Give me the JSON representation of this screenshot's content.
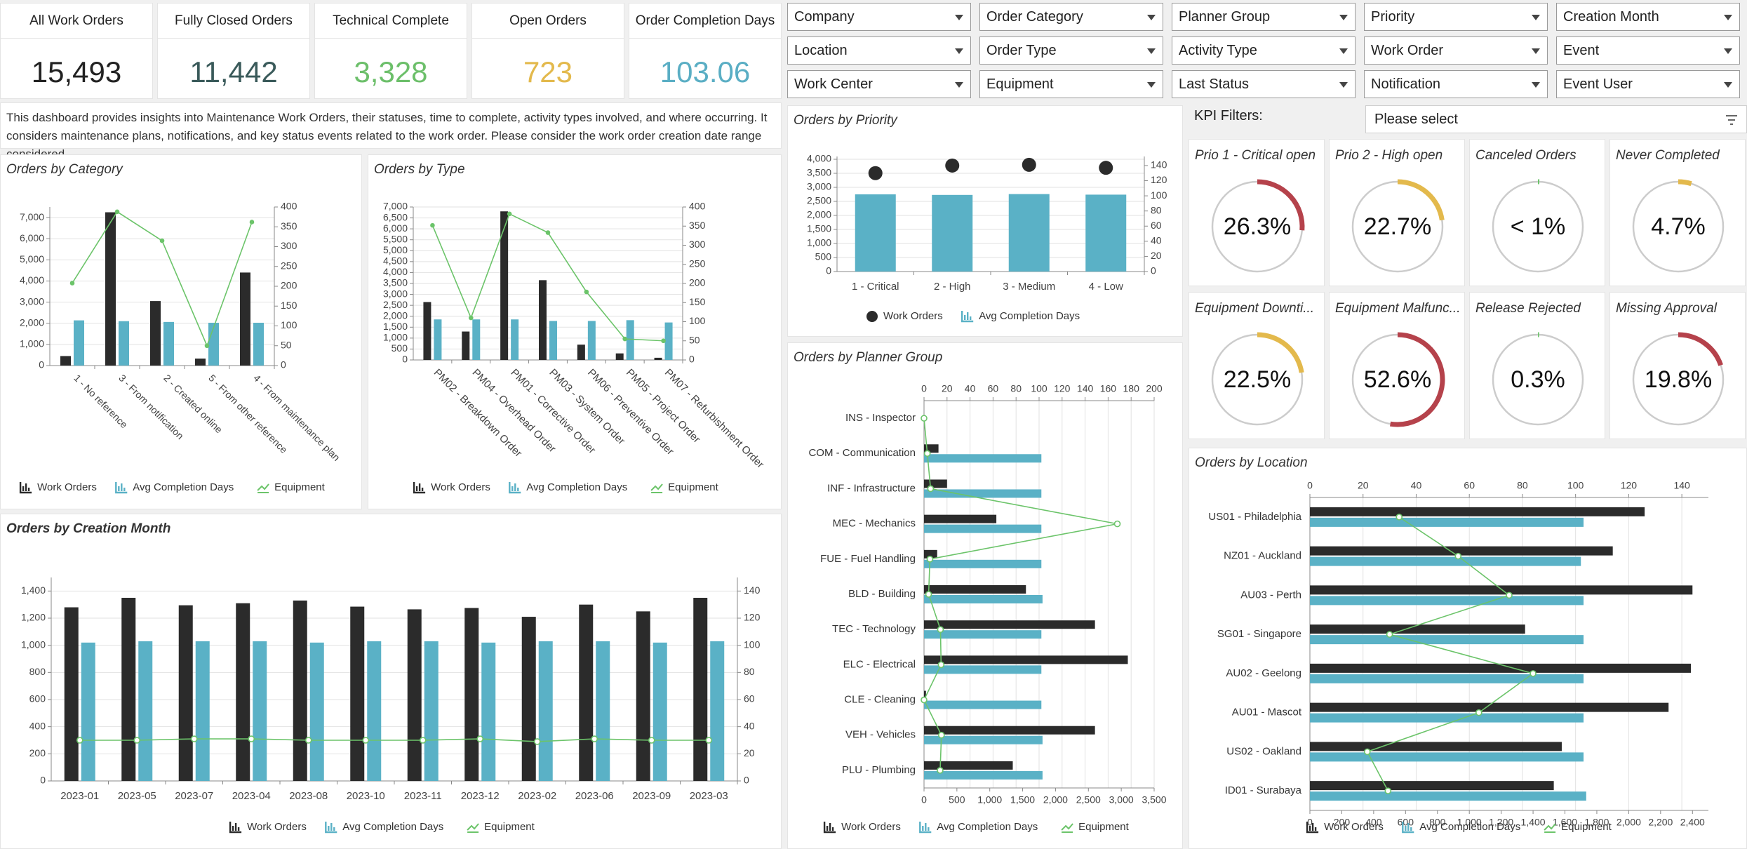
{
  "kpis": [
    {
      "title": "All Work Orders",
      "value": "15,493",
      "color": "#222222"
    },
    {
      "title": "Fully Closed Orders",
      "value": "11,442",
      "color": "#3a5a5a"
    },
    {
      "title": "Technical Complete",
      "value": "3,328",
      "color": "#6cbf6a"
    },
    {
      "title": "Open Orders",
      "value": "723",
      "color": "#e3b94c"
    },
    {
      "title": "Order Completion Days",
      "value": "103.06",
      "color": "#5aaec4"
    }
  ],
  "filters": [
    [
      "Company",
      "Order Category",
      "Planner Group",
      "Priority",
      "Creation Month"
    ],
    [
      "Location",
      "Order Type",
      "Activity Type",
      "Work Order",
      "Event"
    ],
    [
      "Work Center",
      "Equipment",
      "Last Status",
      "Notification",
      "Event User"
    ]
  ],
  "description": "This dashboard provides insights into Maintenance Work Orders, their statuses, time to complete, activity types involved, and where occurring. It considers maintenance plans, notifications, and key status events related to the work order. Please consider the work order creation date range considered.",
  "kpi_filters": {
    "label": "KPI Filters:",
    "placeholder": "Please select"
  },
  "legend": {
    "work_orders": "Work Orders",
    "avg_days": "Avg Completion Days",
    "equipment": "Equipment"
  },
  "colors": {
    "dark": "#2b2b2b",
    "teal": "#5ab1c6",
    "green": "#6cc46a",
    "red": "#b5424b",
    "yellow": "#e3b94c",
    "track": "#cccccc"
  },
  "gauges": [
    {
      "title": "Prio 1 - Critical open",
      "value": "26.3%",
      "fraction": 0.263,
      "color": "#b5424b"
    },
    {
      "title": "Prio 2 - High open",
      "value": "22.7%",
      "fraction": 0.227,
      "color": "#e3b94c"
    },
    {
      "title": "Canceled Orders",
      "value": "< 1%",
      "fraction": 0.005,
      "color": "#6cc46a"
    },
    {
      "title": "Never Completed",
      "value": "4.7%",
      "fraction": 0.047,
      "color": "#e3b94c"
    },
    {
      "title": "Equipment Downti...",
      "value": "22.5%",
      "fraction": 0.225,
      "color": "#e3b94c"
    },
    {
      "title": "Equipment Malfunc...",
      "value": "52.6%",
      "fraction": 0.526,
      "color": "#b5424b"
    },
    {
      "title": "Release Rejected",
      "value": "0.3%",
      "fraction": 0.003,
      "color": "#6cc46a"
    },
    {
      "title": "Missing Approval",
      "value": "19.8%",
      "fraction": 0.198,
      "color": "#b5424b"
    }
  ],
  "chart_data": [
    {
      "id": "category",
      "title": "Orders by Category",
      "type": "bar",
      "categories": [
        "1 - No reference",
        "3 - From notification",
        "2 - Created online",
        "5 - From other reference",
        "4 - From maintenance plan"
      ],
      "series": [
        {
          "name": "Work Orders",
          "axis": "left",
          "values": [
            450,
            7250,
            3050,
            330,
            4400
          ]
        },
        {
          "name": "Avg Completion Days",
          "axis": "right",
          "values": [
            114,
            112,
            110,
            108,
            108
          ]
        },
        {
          "name": "Equipment",
          "axis": "right",
          "kind": "line",
          "values": [
            208,
            388,
            315,
            50,
            362
          ]
        }
      ],
      "left_ticks": [
        "0",
        "1,000",
        "2,000",
        "3,000",
        "4,000",
        "5,000",
        "6,000",
        "7,000"
      ],
      "right_ticks": [
        "0",
        "50",
        "100",
        "150",
        "200",
        "250",
        "300",
        "350",
        "400"
      ],
      "ylim": [
        0,
        7500
      ],
      "y2lim": [
        0,
        400
      ],
      "legend": "bottom"
    },
    {
      "id": "type",
      "title": "Orders by Type",
      "type": "bar",
      "categories": [
        "PM02 - Breakdown Order",
        "PM04 - Overhead Order",
        "PM01 - Corrective Order",
        "PM03 - System Order",
        "PM06 - Preventive Order",
        "PM05 - Project Order",
        "PM07 - Refurbishment Order"
      ],
      "series": [
        {
          "name": "Work Orders",
          "axis": "left",
          "values": [
            2650,
            1300,
            6800,
            3650,
            700,
            300,
            100
          ]
        },
        {
          "name": "Avg Completion Days",
          "axis": "right",
          "values": [
            106,
            106,
            106,
            102,
            102,
            104,
            98
          ]
        },
        {
          "name": "Equipment",
          "axis": "right",
          "kind": "line",
          "values": [
            352,
            110,
            382,
            333,
            178,
            55,
            50
          ]
        }
      ],
      "left_ticks": [
        "0",
        "500",
        "1,000",
        "1,500",
        "2,000",
        "2,500",
        "3,000",
        "3,500",
        "4,000",
        "4,500",
        "5,000",
        "5,500",
        "6,000",
        "6,500",
        "7,000"
      ],
      "right_ticks": [
        "0",
        "50",
        "100",
        "150",
        "200",
        "250",
        "300",
        "350",
        "400"
      ],
      "ylim": [
        0,
        7000
      ],
      "y2lim": [
        0,
        400
      ],
      "legend": "bottom"
    },
    {
      "id": "month",
      "title": "Orders by Creation Month",
      "type": "bar",
      "categories": [
        "2023-01",
        "2023-05",
        "2023-07",
        "2023-04",
        "2023-08",
        "2023-10",
        "2023-11",
        "2023-12",
        "2023-02",
        "2023-06",
        "2023-09",
        "2023-03"
      ],
      "series": [
        {
          "name": "Work Orders",
          "axis": "left",
          "values": [
            1280,
            1350,
            1295,
            1310,
            1330,
            1285,
            1265,
            1275,
            1210,
            1300,
            1250,
            1350
          ]
        },
        {
          "name": "Avg Completion Days",
          "axis": "right",
          "values": [
            102,
            103,
            103,
            103,
            102,
            103,
            103,
            102,
            103,
            103,
            102,
            103
          ]
        },
        {
          "name": "Equipment",
          "axis": "right",
          "kind": "line",
          "values": [
            30,
            30,
            31,
            31,
            30,
            30,
            30,
            31,
            29,
            31,
            30,
            30
          ]
        }
      ],
      "left_ticks": [
        "0",
        "200",
        "400",
        "600",
        "800",
        "1,000",
        "1,200",
        "1,400"
      ],
      "right_ticks": [
        "0",
        "20",
        "40",
        "60",
        "80",
        "100",
        "120",
        "140"
      ],
      "ylim": [
        0,
        1500
      ],
      "y2lim": [
        0,
        150
      ],
      "legend": "bottom"
    },
    {
      "id": "priority",
      "title": "Orders by Priority",
      "type": "bar",
      "categories": [
        "1 - Critical",
        "2 - High",
        "3 - Medium",
        "4 - Low"
      ],
      "series": [
        {
          "name": "Work Orders",
          "axis": "right",
          "kind": "dot",
          "values": [
            130,
            140,
            141,
            137
          ]
        },
        {
          "name": "Avg Completion Days",
          "axis": "left",
          "values": [
            2750,
            2730,
            2760,
            2740
          ]
        }
      ],
      "left_ticks": [
        "0",
        "500",
        "1,000",
        "1,500",
        "2,000",
        "2,500",
        "3,000",
        "3,500",
        "4,000"
      ],
      "right_ticks": [
        "0",
        "20",
        "40",
        "60",
        "80",
        "100",
        "120",
        "140"
      ],
      "ylim": [
        0,
        4100
      ],
      "y2lim": [
        0,
        152
      ],
      "legend": "bottom"
    },
    {
      "id": "planner",
      "title": "Orders by Planner Group",
      "type": "bar",
      "orientation": "horizontal",
      "categories": [
        "INS - Inspector",
        "COM - Communication",
        "INF - Infrastructure",
        "MEC - Mechanics",
        "FUE - Fuel Handling",
        "BLD - Building",
        "TEC - Technology",
        "ELC - Electrical",
        "CLE - Cleaning",
        "VEH - Vehicles",
        "PLU - Plumbing"
      ],
      "series": [
        {
          "name": "Work Orders",
          "axis": "bottom",
          "values": [
            0,
            220,
            350,
            1100,
            200,
            1550,
            2600,
            3100,
            30,
            2600,
            1350
          ]
        },
        {
          "name": "Avg Completion Days",
          "axis": "top",
          "values": [
            0,
            102,
            102,
            102,
            102,
            103,
            102,
            102,
            102,
            103,
            103
          ]
        },
        {
          "name": "Equipment",
          "axis": "bottom",
          "kind": "line",
          "values": [
            0,
            50,
            100,
            2940,
            90,
            70,
            250,
            260,
            0,
            265,
            245
          ]
        }
      ],
      "top_ticks": [
        "0",
        "20",
        "40",
        "60",
        "80",
        "100",
        "120",
        "140",
        "160",
        "180",
        "200"
      ],
      "bottom_ticks": [
        "0",
        "500",
        "1,000",
        "1,500",
        "2,000",
        "2,500",
        "3,000",
        "3,500"
      ],
      "xlim": [
        0,
        3500
      ],
      "x2lim": [
        0,
        200
      ],
      "legend": "bottom"
    },
    {
      "id": "location",
      "title": "Orders by Location",
      "type": "bar",
      "orientation": "horizontal",
      "categories": [
        "US01 - Philadelphia",
        "NZ01 - Auckland",
        "AU03 - Perth",
        "SG01 - Singapore",
        "AU02 - Geelong",
        "AU01 - Mascot",
        "US02 - Oakland",
        "ID01 - Surabaya"
      ],
      "series": [
        {
          "name": "Work Orders",
          "axis": "bottom",
          "values": [
            2100,
            1900,
            2400,
            1350,
            2390,
            2250,
            1580,
            1530
          ]
        },
        {
          "name": "Avg Completion Days",
          "axis": "top",
          "values": [
            103,
            102,
            103,
            103,
            103,
            103,
            103,
            104
          ]
        },
        {
          "name": "Equipment",
          "axis": "bottom",
          "kind": "line",
          "values": [
            560,
            930,
            1250,
            500,
            1400,
            1060,
            360,
            490
          ]
        }
      ],
      "top_ticks": [
        "0",
        "20",
        "40",
        "60",
        "80",
        "100",
        "120",
        "140"
      ],
      "bottom_ticks": [
        "0",
        "200",
        "400",
        "600",
        "800",
        "1,000",
        "1,200",
        "1,400",
        "1,600",
        "1,800",
        "2,000",
        "2,200",
        "2,400"
      ],
      "xlim": [
        0,
        2500
      ],
      "x2lim": [
        0,
        150
      ],
      "legend": "bottom"
    }
  ]
}
